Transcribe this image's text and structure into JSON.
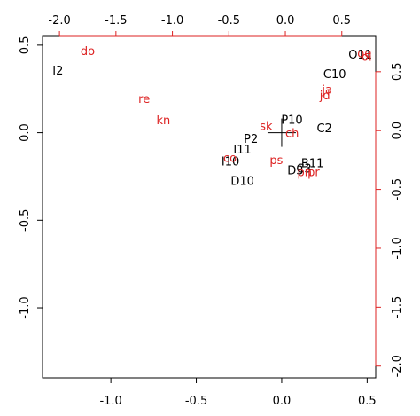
{
  "chart_data": {
    "type": "scatter",
    "subtype": "biplot",
    "title": "",
    "xlabel": "",
    "ylabel": "",
    "grid": false,
    "legend": "none",
    "axes": {
      "bottom": {
        "range": [
          -1.4,
          0.55
        ],
        "ticks": [
          -1.0,
          -0.5,
          0.0,
          0.5
        ],
        "tick_labels": [
          "-1.0",
          "-0.5",
          "0.0",
          "0.5"
        ]
      },
      "left": {
        "range": [
          -1.4,
          0.55
        ],
        "ticks": [
          -1.0,
          -0.5,
          0.0,
          0.5
        ],
        "tick_labels": [
          "-1.0",
          "-0.5",
          "0.0",
          "0.5"
        ]
      },
      "top": {
        "range": [
          -2.15,
          0.8
        ],
        "ticks": [
          -2.0,
          -1.5,
          -1.0,
          -0.5,
          0.0,
          0.5
        ],
        "tick_labels": [
          "-2.0",
          "-1.5",
          "-1.0",
          "-0.5",
          "0.0",
          "0.5"
        ],
        "color": "#dd2222"
      },
      "right": {
        "range": [
          -2.1,
          0.8
        ],
        "ticks": [
          -2.0,
          -1.5,
          -1.0,
          -0.5,
          0.0,
          0.5
        ],
        "tick_labels": [
          "-2.0",
          "-1.5",
          "-1.0",
          "-0.5",
          "0.0",
          "0.5"
        ],
        "color": "#dd2222"
      }
    },
    "series": [
      {
        "color": "#000000",
        "axes": "primary",
        "points": [
          {
            "label": "I2",
            "x": -1.31,
            "y": 0.35
          },
          {
            "label": "O11",
            "x": 0.46,
            "y": 0.44
          },
          {
            "label": "C10",
            "x": 0.31,
            "y": 0.33
          },
          {
            "label": "P10",
            "x": 0.06,
            "y": 0.07
          },
          {
            "label": "C2",
            "x": 0.25,
            "y": 0.02
          },
          {
            "label": "P2",
            "x": -0.18,
            "y": -0.04
          },
          {
            "label": "I11",
            "x": -0.23,
            "y": -0.1
          },
          {
            "label": "I10",
            "x": -0.3,
            "y": -0.17
          },
          {
            "label": "D10",
            "x": -0.23,
            "y": -0.28
          },
          {
            "label": "B11",
            "x": 0.18,
            "y": -0.18
          },
          {
            "label": "C3",
            "x": 0.13,
            "y": -0.21
          },
          {
            "label": "D3",
            "x": 0.08,
            "y": -0.22
          }
        ]
      },
      {
        "color": "#dd2222",
        "axes": "secondary",
        "points": [
          {
            "label": "do",
            "x": -1.75,
            "y": 0.67
          },
          {
            "label": "re",
            "x": -1.25,
            "y": 0.26
          },
          {
            "label": "kn",
            "x": -1.08,
            "y": 0.08
          },
          {
            "label": "sk",
            "x": -0.17,
            "y": 0.03
          },
          {
            "label": "ch",
            "x": 0.06,
            "y": -0.03
          },
          {
            "label": "co",
            "x": -0.49,
            "y": -0.24
          },
          {
            "label": "ps",
            "x": -0.08,
            "y": -0.26
          },
          {
            "label": "pn",
            "x": 0.17,
            "y": -0.36
          },
          {
            "label": "pr",
            "x": 0.25,
            "y": -0.36
          },
          {
            "label": "ja",
            "x": 0.37,
            "y": 0.34
          },
          {
            "label": "jd",
            "x": 0.35,
            "y": 0.29
          },
          {
            "label": "ol",
            "x": 0.72,
            "y": 0.62
          },
          {
            "label": "oe",
            "x": 0.7,
            "y": 0.65
          }
        ]
      }
    ]
  }
}
